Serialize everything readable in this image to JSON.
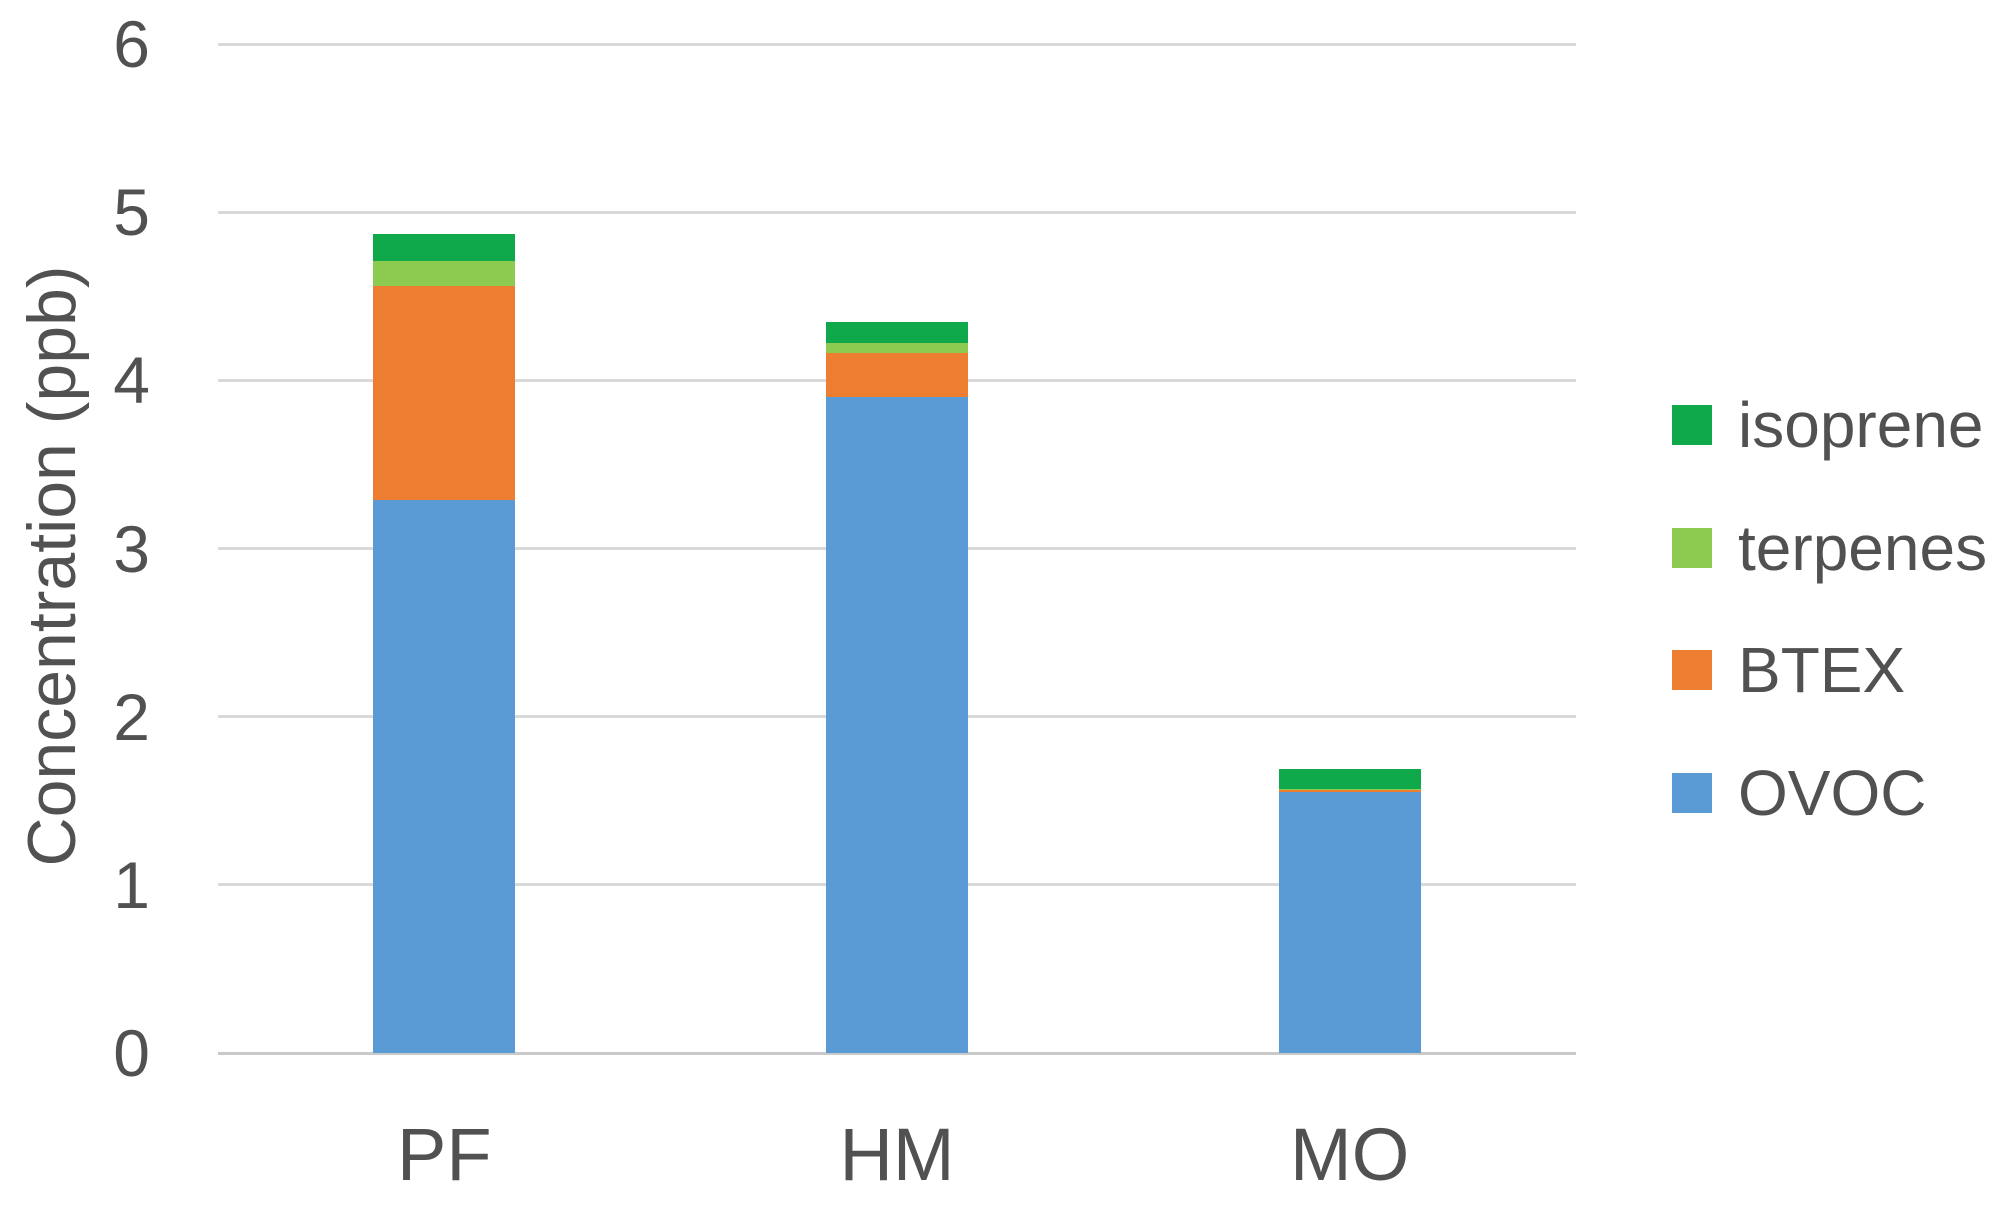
{
  "chart_data": {
    "type": "bar",
    "stacked": true,
    "title": "",
    "xlabel": "",
    "ylabel": "Concentration (ppb)",
    "categories": [
      "PF",
      "HM",
      "MO"
    ],
    "series": [
      {
        "name": "OVOC",
        "color": "#5b9bd5",
        "values": [
          3.29,
          3.9,
          1.55
        ]
      },
      {
        "name": "BTEX",
        "color": "#ed7d31",
        "values": [
          1.27,
          0.26,
          0.015
        ]
      },
      {
        "name": "terpenes",
        "color": "#8ccb50",
        "values": [
          0.15,
          0.065,
          0.005
        ]
      },
      {
        "name": "isoprene",
        "color": "#0fa94c",
        "values": [
          0.16,
          0.12,
          0.12
        ]
      }
    ],
    "totals": [
      4.87,
      4.35,
      1.69
    ],
    "ylim": [
      0,
      6
    ],
    "yticks": [
      0,
      1,
      2,
      3,
      4,
      5,
      6
    ],
    "grid": "horizontal",
    "gridline_color": "#d9d9d9",
    "text_color": "#515151",
    "background_color": "#ffffff",
    "legend": {
      "position": "right",
      "entries": [
        "isoprene",
        "terpenes",
        "BTEX",
        "OVOC"
      ]
    }
  }
}
